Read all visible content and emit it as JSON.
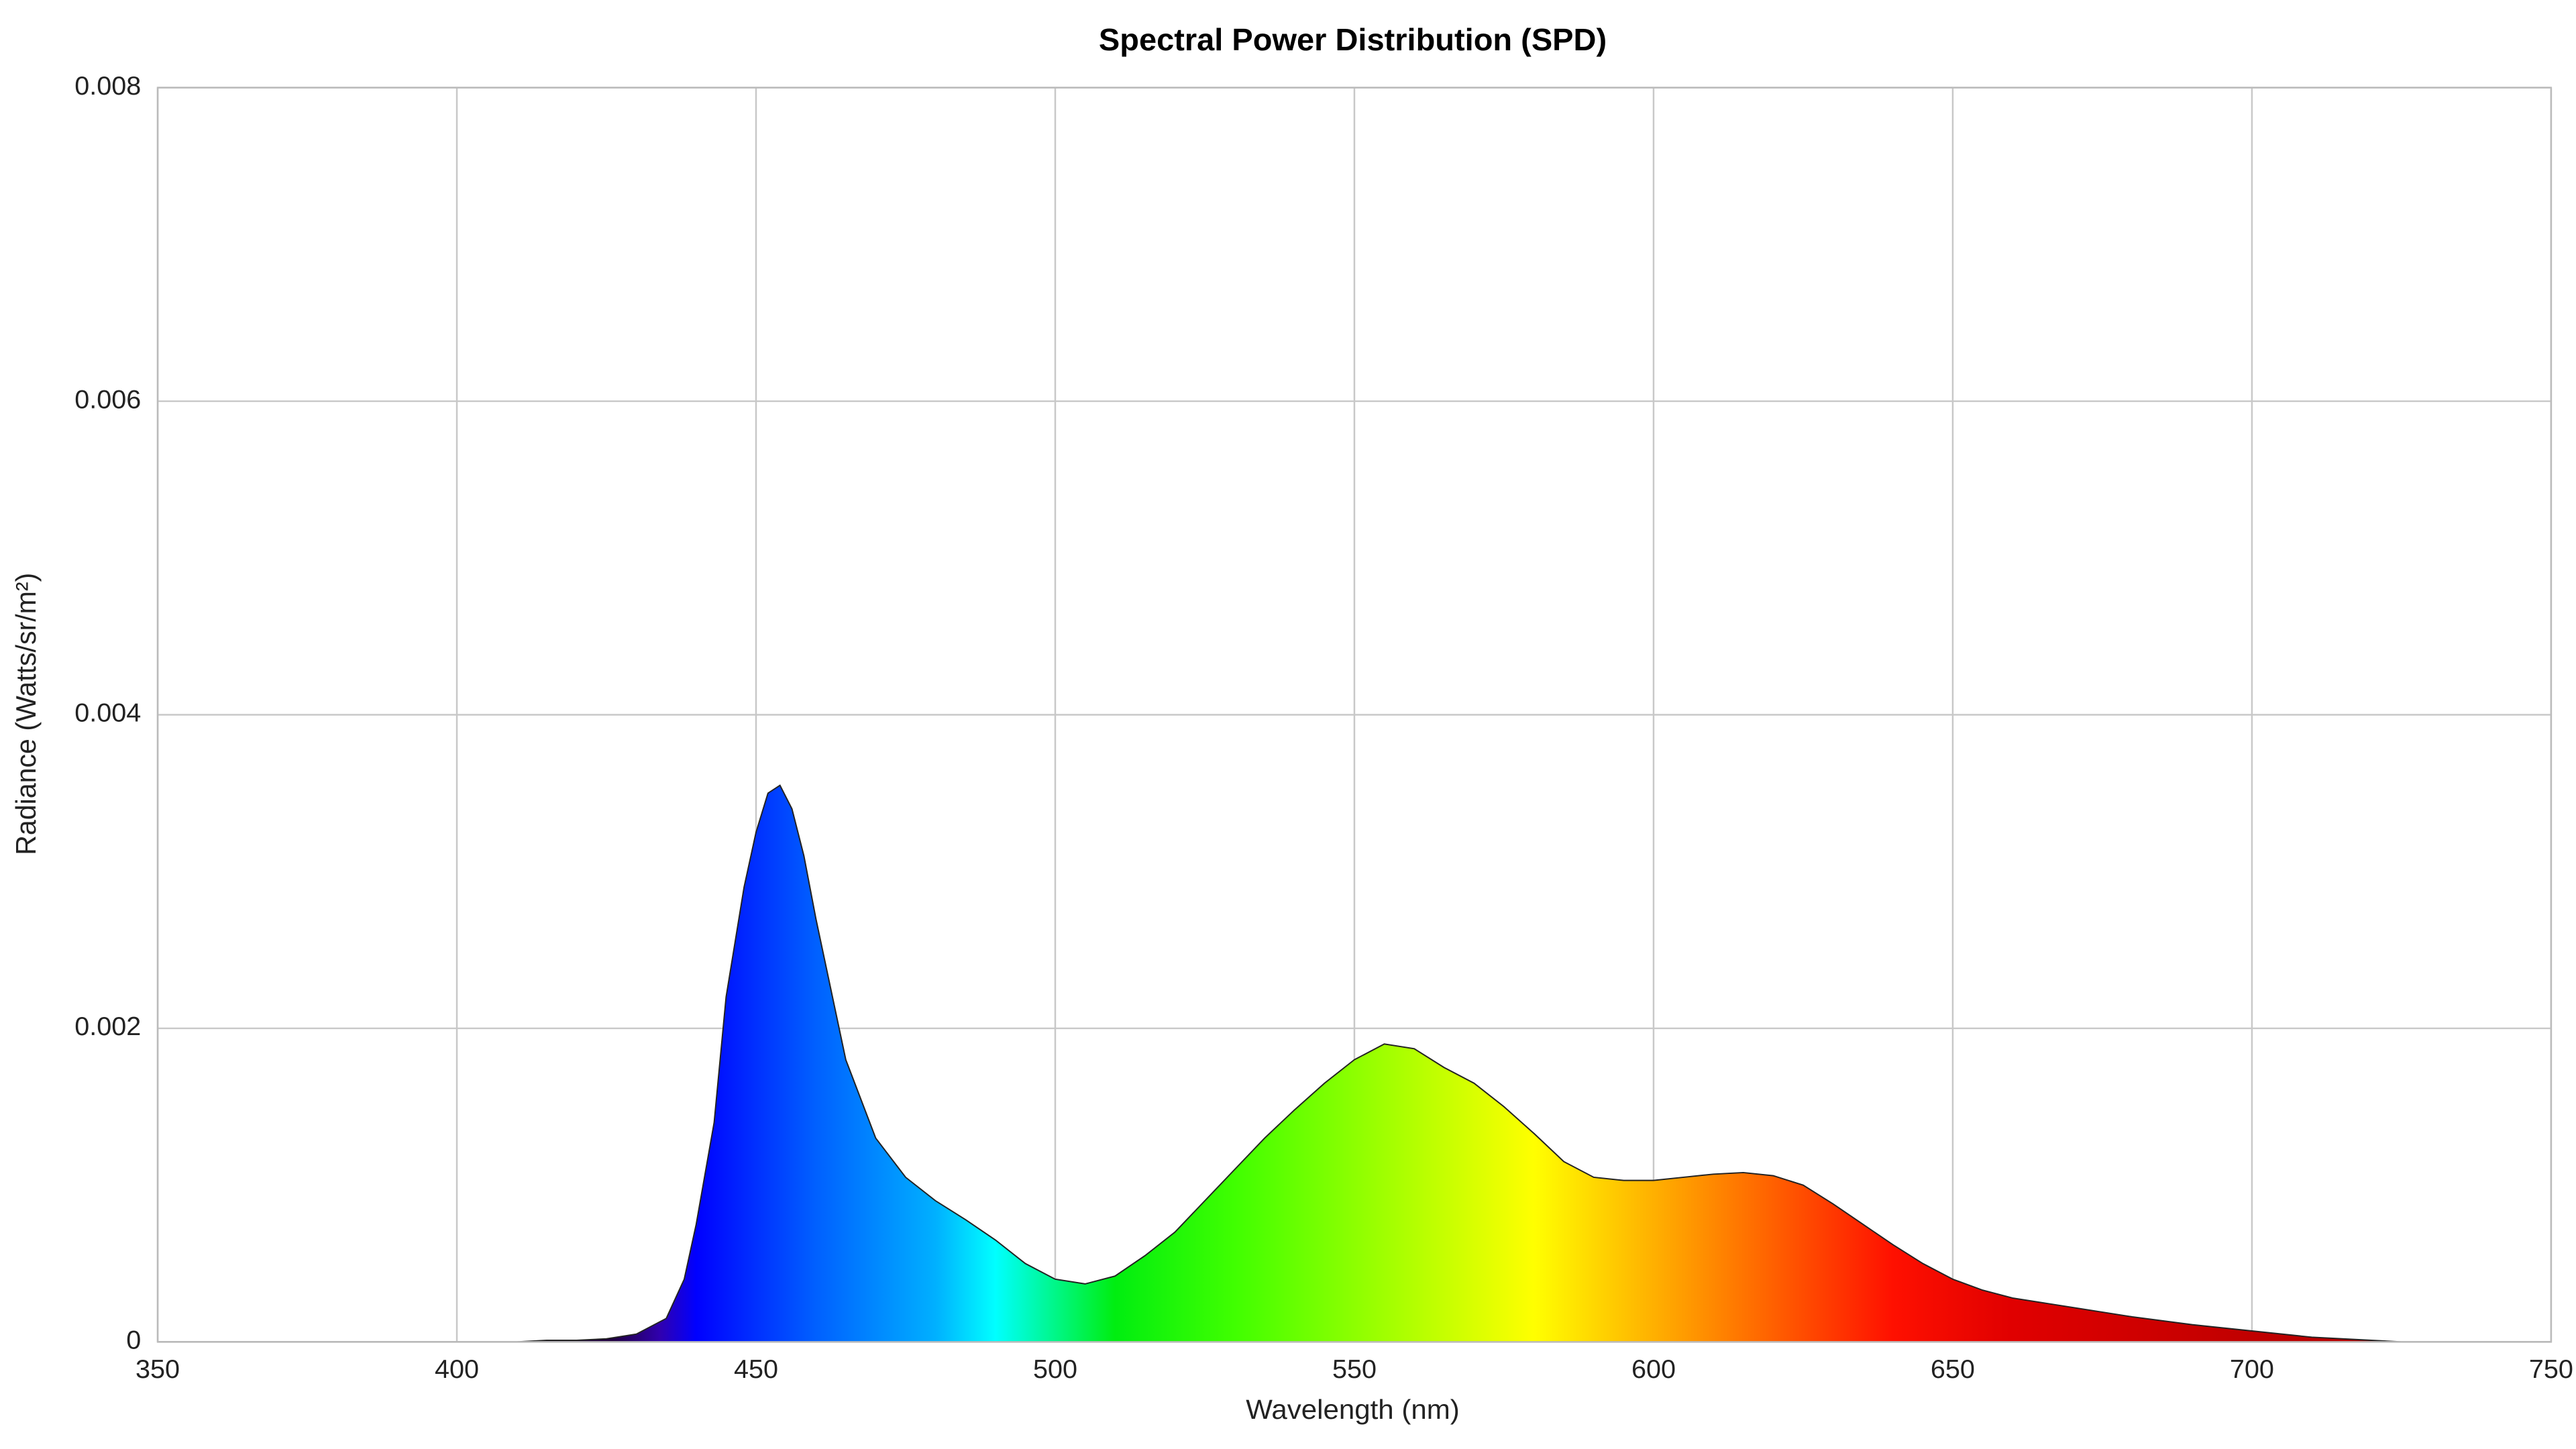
{
  "chart_data": {
    "type": "area",
    "title": "Spectral Power Distribution (SPD)",
    "x_label": "Wavelength (nm)",
    "y_label": "Radiance (Watts/sr/m²)",
    "x": [
      350,
      400,
      410,
      415,
      420,
      425,
      430,
      435,
      438,
      440,
      443,
      445,
      448,
      450,
      452,
      454,
      456,
      458,
      460,
      465,
      470,
      475,
      480,
      485,
      490,
      495,
      500,
      505,
      510,
      515,
      520,
      525,
      530,
      535,
      540,
      545,
      550,
      555,
      560,
      565,
      570,
      575,
      580,
      585,
      590,
      595,
      600,
      605,
      610,
      615,
      620,
      625,
      630,
      635,
      640,
      645,
      650,
      655,
      660,
      670,
      680,
      690,
      700,
      710,
      720,
      725,
      750
    ],
    "values": [
      0,
      0,
      0,
      1e-05,
      1e-05,
      2e-05,
      5e-05,
      0.00015,
      0.0004,
      0.00075,
      0.0014,
      0.0022,
      0.0029,
      0.00325,
      0.0035,
      0.00355,
      0.0034,
      0.0031,
      0.0027,
      0.0018,
      0.0013,
      0.00105,
      0.0009,
      0.00078,
      0.00065,
      0.0005,
      0.0004,
      0.00037,
      0.00042,
      0.00055,
      0.0007,
      0.0009,
      0.0011,
      0.0013,
      0.00148,
      0.00165,
      0.0018,
      0.0019,
      0.00187,
      0.00175,
      0.00165,
      0.0015,
      0.00133,
      0.00115,
      0.00105,
      0.00103,
      0.00103,
      0.00105,
      0.00107,
      0.00108,
      0.00106,
      0.001,
      0.00088,
      0.00075,
      0.00062,
      0.0005,
      0.0004,
      0.00033,
      0.00028,
      0.00022,
      0.00016,
      0.00011,
      7e-05,
      3e-05,
      1e-05,
      0,
      0
    ],
    "line_color": "#222222",
    "xlim": [
      350,
      750
    ],
    "ylim": [
      0,
      0.008
    ],
    "xticks": [
      350,
      400,
      450,
      500,
      550,
      600,
      650,
      700,
      750
    ],
    "yticks": [
      0,
      0.002,
      0.004,
      0.006,
      0.008
    ],
    "grid": true
  }
}
